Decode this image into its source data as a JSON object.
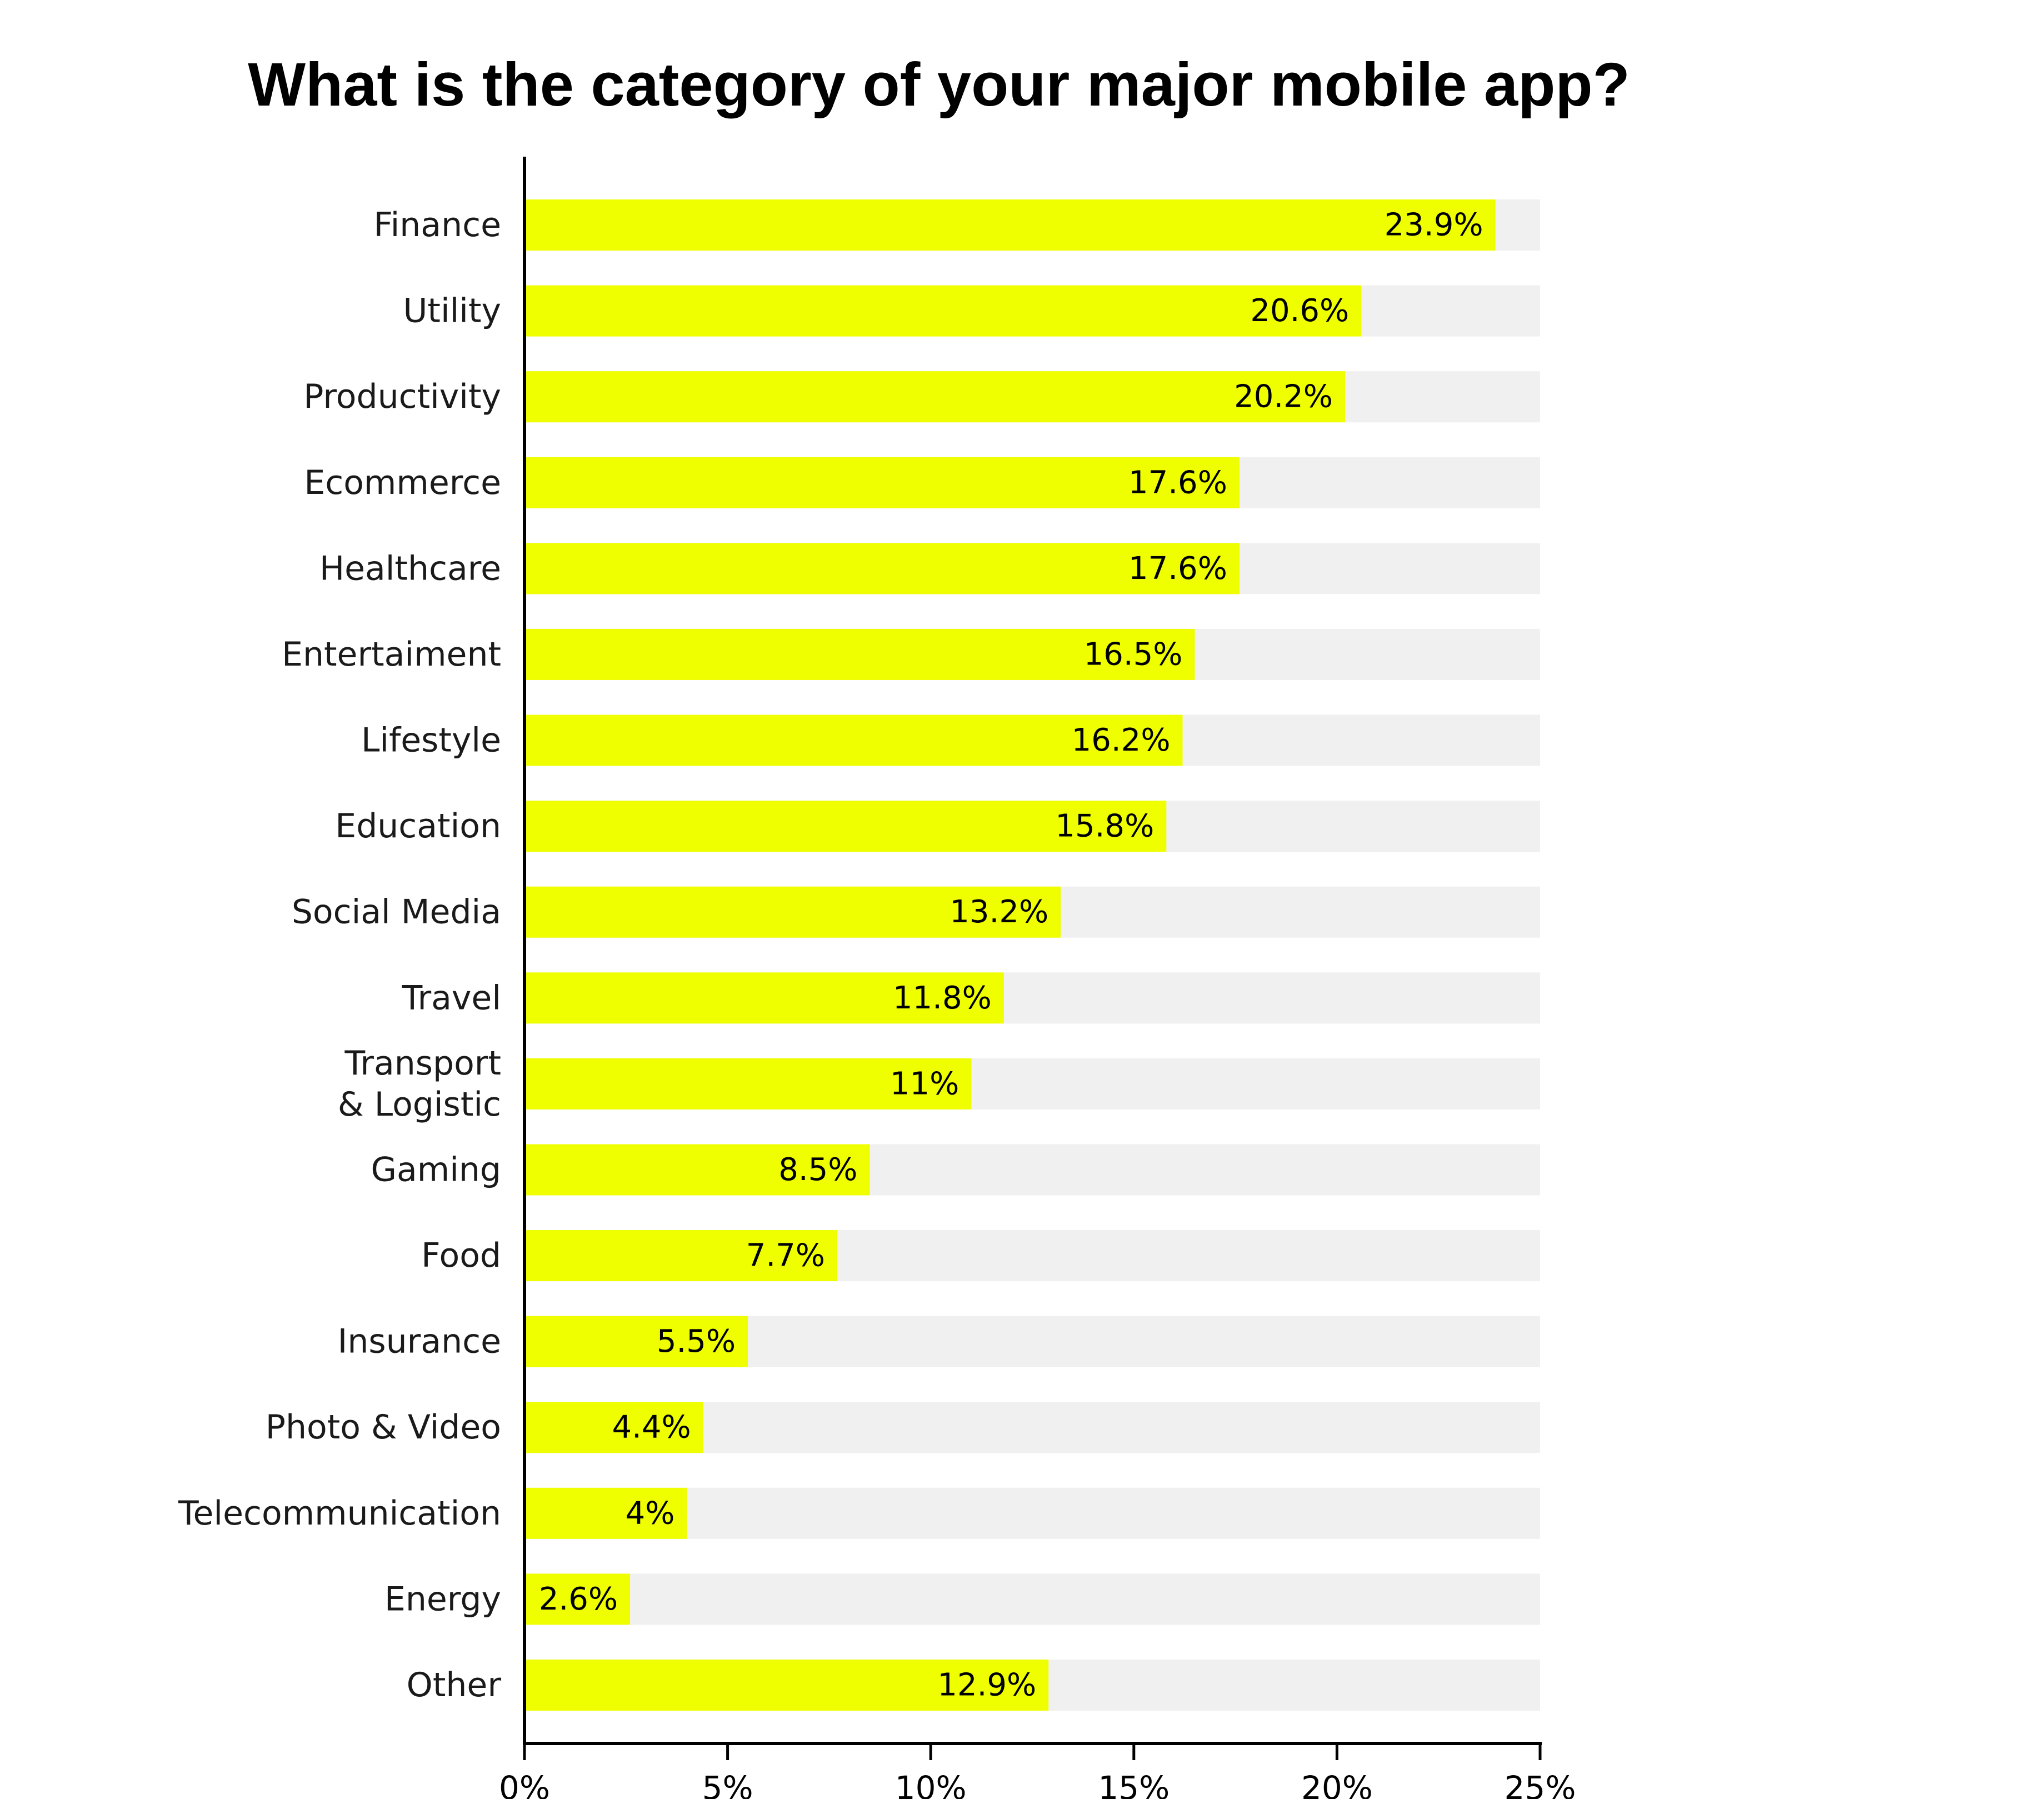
{
  "chart_data": {
    "type": "bar",
    "orientation": "horizontal",
    "title": "What is the category of your major mobile app?",
    "categories": [
      "Finance",
      "Utility",
      "Productivity",
      "Ecommerce",
      "Healthcare",
      "Entertaiment",
      "Lifestyle",
      "Education",
      "Social Media",
      "Travel",
      "Transport\n& Logistic",
      "Gaming",
      "Food",
      "Insurance",
      "Photo & Video",
      "Telecommunication",
      "Energy",
      "Other"
    ],
    "values": [
      23.9,
      20.6,
      20.2,
      17.6,
      17.6,
      16.5,
      16.2,
      15.8,
      13.2,
      11.8,
      11,
      8.5,
      7.7,
      5.5,
      4.4,
      4,
      2.6,
      12.9
    ],
    "value_labels": [
      "23.9%",
      "20.6%",
      "20.2%",
      "17.6%",
      "17.6%",
      "16.5%",
      "16.2%",
      "15.8%",
      "13.2%",
      "11.8%",
      "11%",
      "8.5%",
      "7.7%",
      "5.5%",
      "4.4%",
      "4%",
      "2.6%",
      "12.9%"
    ],
    "xlim": [
      0,
      25
    ],
    "xticks": [
      0,
      5,
      10,
      15,
      20,
      25
    ],
    "xtick_labels": [
      "0%",
      "5%",
      "10%",
      "15%",
      "20%",
      "25%"
    ],
    "xlabel": "",
    "ylabel": "",
    "grid": false,
    "legend": "none",
    "bar_color": "#EFFF00",
    "track_color": "#F0F0F0",
    "axis_color": "#000000"
  }
}
